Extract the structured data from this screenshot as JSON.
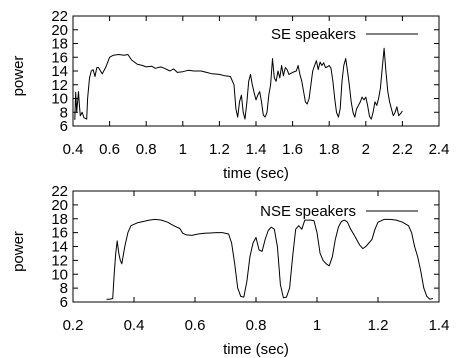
{
  "chart_data": [
    {
      "type": "line",
      "xlabel": "time (sec)",
      "ylabel": "power",
      "xlim": [
        0.4,
        2.4
      ],
      "ylim": [
        6,
        22
      ],
      "x_ticks": [
        "0.4",
        "0.6",
        "0.8",
        "1",
        "1.2",
        "1.4",
        "1.6",
        "1.8",
        "2",
        "2.2",
        "2.4"
      ],
      "y_ticks": [
        "6",
        "8",
        "10",
        "12",
        "14",
        "16",
        "18",
        "20",
        "22"
      ],
      "grid": false,
      "legend_position": "top-right",
      "series": [
        {
          "name": "SE speakers",
          "color": "#000000",
          "points": [
            [
              0.41,
              6.9
            ],
            [
              0.415,
              10.9
            ],
            [
              0.42,
              8.0
            ],
            [
              0.43,
              11.0
            ],
            [
              0.435,
              9.0
            ],
            [
              0.44,
              7.5
            ],
            [
              0.45,
              8.0
            ],
            [
              0.46,
              7.2
            ],
            [
              0.475,
              7.0
            ],
            [
              0.48,
              10.0
            ],
            [
              0.49,
              13.0
            ],
            [
              0.5,
              14.0
            ],
            [
              0.51,
              14.2
            ],
            [
              0.52,
              13.2
            ],
            [
              0.53,
              14.5
            ],
            [
              0.54,
              14.5
            ],
            [
              0.55,
              14.0
            ],
            [
              0.56,
              13.6
            ],
            [
              0.58,
              14.6
            ],
            [
              0.6,
              16.0
            ],
            [
              0.62,
              16.3
            ],
            [
              0.65,
              16.4
            ],
            [
              0.68,
              16.3
            ],
            [
              0.7,
              16.4
            ],
            [
              0.72,
              15.6
            ],
            [
              0.75,
              15.0
            ],
            [
              0.78,
              14.8
            ],
            [
              0.8,
              14.6
            ],
            [
              0.83,
              14.7
            ],
            [
              0.85,
              14.4
            ],
            [
              0.88,
              14.6
            ],
            [
              0.9,
              14.4
            ],
            [
              0.93,
              14.0
            ],
            [
              0.95,
              14.3
            ],
            [
              0.97,
              13.8
            ],
            [
              1.0,
              13.9
            ],
            [
              1.03,
              14.1
            ],
            [
              1.06,
              14.0
            ],
            [
              1.1,
              14.0
            ],
            [
              1.13,
              13.8
            ],
            [
              1.16,
              13.6
            ],
            [
              1.2,
              13.5
            ],
            [
              1.23,
              13.3
            ],
            [
              1.26,
              13.2
            ],
            [
              1.28,
              12.0
            ],
            [
              1.29,
              8.5
            ],
            [
              1.3,
              7.3
            ],
            [
              1.31,
              9.5
            ],
            [
              1.32,
              10.5
            ],
            [
              1.33,
              8.0
            ],
            [
              1.34,
              7.0
            ],
            [
              1.35,
              9.5
            ],
            [
              1.36,
              12.5
            ],
            [
              1.37,
              13.5
            ],
            [
              1.38,
              12.0
            ],
            [
              1.39,
              10.8
            ],
            [
              1.4,
              9.8
            ],
            [
              1.41,
              10.5
            ],
            [
              1.42,
              11.0
            ],
            [
              1.43,
              9.5
            ],
            [
              1.44,
              7.6
            ],
            [
              1.45,
              7.3
            ],
            [
              1.46,
              8.0
            ],
            [
              1.47,
              10.5
            ],
            [
              1.48,
              12.0
            ],
            [
              1.49,
              15.8
            ],
            [
              1.5,
              13.0
            ],
            [
              1.51,
              12.5
            ],
            [
              1.52,
              14.0
            ],
            [
              1.53,
              13.0
            ],
            [
              1.54,
              14.8
            ],
            [
              1.55,
              13.3
            ],
            [
              1.56,
              14.5
            ],
            [
              1.57,
              14.2
            ],
            [
              1.58,
              13.5
            ],
            [
              1.6,
              13.8
            ],
            [
              1.62,
              14.0
            ],
            [
              1.63,
              14.8
            ],
            [
              1.64,
              13.5
            ],
            [
              1.65,
              12.5
            ],
            [
              1.66,
              11.0
            ],
            [
              1.67,
              9.5
            ],
            [
              1.68,
              9.2
            ],
            [
              1.69,
              10.0
            ],
            [
              1.7,
              12.0
            ],
            [
              1.71,
              14.0
            ],
            [
              1.72,
              14.8
            ],
            [
              1.73,
              15.5
            ],
            [
              1.74,
              14.2
            ],
            [
              1.75,
              15.3
            ],
            [
              1.76,
              14.8
            ],
            [
              1.77,
              15.2
            ],
            [
              1.78,
              14.5
            ],
            [
              1.79,
              14.6
            ],
            [
              1.8,
              14.8
            ],
            [
              1.81,
              14.4
            ],
            [
              1.82,
              12.5
            ],
            [
              1.83,
              10.0
            ],
            [
              1.84,
              8.0
            ],
            [
              1.85,
              7.3
            ],
            [
              1.86,
              8.5
            ],
            [
              1.87,
              12.5
            ],
            [
              1.88,
              14.8
            ],
            [
              1.89,
              15.8
            ],
            [
              1.9,
              14.0
            ],
            [
              1.91,
              12.0
            ],
            [
              1.92,
              9.5
            ],
            [
              1.93,
              8.0
            ],
            [
              1.94,
              7.3
            ],
            [
              1.95,
              8.5
            ],
            [
              1.97,
              9.5
            ],
            [
              1.98,
              10.2
            ],
            [
              1.99,
              9.8
            ],
            [
              2.0,
              10.2
            ],
            [
              2.01,
              9.0
            ],
            [
              2.02,
              7.4
            ],
            [
              2.03,
              7.0
            ],
            [
              2.04,
              8.0
            ],
            [
              2.05,
              9.5
            ],
            [
              2.06,
              9.0
            ],
            [
              2.07,
              10.0
            ],
            [
              2.08,
              11.5
            ],
            [
              2.09,
              14.5
            ],
            [
              2.1,
              17.3
            ],
            [
              2.11,
              14.0
            ],
            [
              2.12,
              11.0
            ],
            [
              2.13,
              9.5
            ],
            [
              2.14,
              8.5
            ],
            [
              2.15,
              7.5
            ],
            [
              2.16,
              8.0
            ],
            [
              2.17,
              8.8
            ],
            [
              2.18,
              7.5
            ],
            [
              2.19,
              7.8
            ],
            [
              2.2,
              8.2
            ]
          ]
        }
      ]
    },
    {
      "type": "line",
      "xlabel": "time (sec)",
      "ylabel": "power",
      "xlim": [
        0.2,
        1.4
      ],
      "ylim": [
        6,
        22
      ],
      "x_ticks": [
        "0.2",
        "0.4",
        "0.6",
        "0.8",
        "1",
        "1.2",
        "1.4"
      ],
      "y_ticks": [
        "6",
        "8",
        "10",
        "12",
        "14",
        "16",
        "18",
        "20",
        "22"
      ],
      "grid": false,
      "legend_position": "top-right",
      "series": [
        {
          "name": "NSE speakers",
          "color": "#000000",
          "points": [
            [
              0.31,
              6.4
            ],
            [
              0.32,
              6.4
            ],
            [
              0.33,
              6.5
            ],
            [
              0.335,
              10.0
            ],
            [
              0.34,
              13.0
            ],
            [
              0.345,
              14.8
            ],
            [
              0.35,
              13.0
            ],
            [
              0.355,
              12.0
            ],
            [
              0.36,
              11.5
            ],
            [
              0.37,
              14.0
            ],
            [
              0.38,
              16.0
            ],
            [
              0.39,
              17.0
            ],
            [
              0.41,
              17.4
            ],
            [
              0.43,
              17.6
            ],
            [
              0.45,
              17.8
            ],
            [
              0.47,
              17.9
            ],
            [
              0.49,
              17.8
            ],
            [
              0.51,
              17.5
            ],
            [
              0.53,
              17.0
            ],
            [
              0.55,
              16.6
            ],
            [
              0.56,
              15.9
            ],
            [
              0.57,
              15.7
            ],
            [
              0.59,
              15.6
            ],
            [
              0.61,
              15.8
            ],
            [
              0.63,
              15.9
            ],
            [
              0.65,
              15.95
            ],
            [
              0.67,
              16.0
            ],
            [
              0.69,
              16.0
            ],
            [
              0.71,
              15.8
            ],
            [
              0.72,
              14.5
            ],
            [
              0.73,
              11.5
            ],
            [
              0.74,
              8.0
            ],
            [
              0.75,
              6.8
            ],
            [
              0.76,
              6.7
            ],
            [
              0.77,
              9.0
            ],
            [
              0.78,
              12.5
            ],
            [
              0.79,
              14.5
            ],
            [
              0.8,
              15.3
            ],
            [
              0.81,
              13.5
            ],
            [
              0.82,
              13.3
            ],
            [
              0.83,
              15.0
            ],
            [
              0.84,
              16.3
            ],
            [
              0.85,
              16.8
            ],
            [
              0.86,
              16.5
            ],
            [
              0.87,
              14.0
            ],
            [
              0.88,
              8.5
            ],
            [
              0.89,
              6.6
            ],
            [
              0.9,
              6.7
            ],
            [
              0.91,
              8.0
            ],
            [
              0.92,
              12.5
            ],
            [
              0.93,
              16.5
            ],
            [
              0.94,
              17.0
            ],
            [
              0.95,
              16.5
            ],
            [
              0.96,
              17.8
            ],
            [
              0.97,
              17.8
            ],
            [
              0.98,
              17.8
            ],
            [
              0.99,
              17.7
            ],
            [
              1.0,
              16.0
            ],
            [
              1.01,
              13.0
            ],
            [
              1.02,
              12.0
            ],
            [
              1.03,
              11.5
            ],
            [
              1.04,
              11.2
            ],
            [
              1.05,
              12.5
            ],
            [
              1.06,
              15.0
            ],
            [
              1.07,
              16.8
            ],
            [
              1.08,
              17.6
            ],
            [
              1.09,
              17.8
            ],
            [
              1.1,
              17.5
            ],
            [
              1.11,
              16.5
            ],
            [
              1.12,
              15.8
            ],
            [
              1.13,
              15.0
            ],
            [
              1.14,
              14.2
            ],
            [
              1.15,
              13.7
            ],
            [
              1.16,
              14.0
            ],
            [
              1.17,
              14.5
            ],
            [
              1.18,
              15.0
            ],
            [
              1.19,
              16.5
            ],
            [
              1.2,
              17.5
            ],
            [
              1.22,
              17.9
            ],
            [
              1.24,
              17.9
            ],
            [
              1.26,
              17.8
            ],
            [
              1.28,
              17.5
            ],
            [
              1.3,
              17.0
            ],
            [
              1.31,
              16.0
            ],
            [
              1.32,
              14.0
            ],
            [
              1.33,
              12.5
            ],
            [
              1.34,
              10.5
            ],
            [
              1.35,
              8.0
            ],
            [
              1.36,
              6.8
            ],
            [
              1.37,
              6.4
            ],
            [
              1.38,
              6.5
            ]
          ]
        }
      ]
    }
  ]
}
